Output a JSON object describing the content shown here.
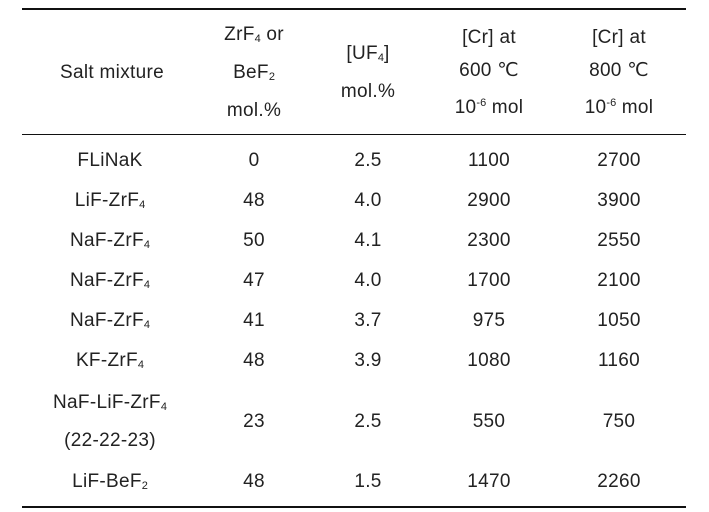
{
  "table": {
    "headers": [
      {
        "lines": [
          [
            {
              "t": "Salt mixture"
            }
          ]
        ]
      },
      {
        "lines": [
          [
            {
              "t": "ZrF"
            },
            {
              "t": "4",
              "s": "sub"
            },
            {
              "t": " or"
            }
          ],
          [
            {
              "t": "BeF"
            },
            {
              "t": "2",
              "s": "sub"
            }
          ],
          [
            {
              "t": "mol.%"
            }
          ]
        ]
      },
      {
        "lines": [
          [
            {
              "t": "[UF"
            },
            {
              "t": "4",
              "s": "sub"
            },
            {
              "t": "]"
            }
          ],
          [
            {
              "t": "mol.%"
            }
          ]
        ]
      },
      {
        "lines": [
          [
            {
              "t": "[Cr] at"
            }
          ],
          [
            {
              "t": "600 ℃"
            }
          ],
          [
            {
              "t": "10"
            },
            {
              "t": "-6",
              "s": "sup"
            },
            {
              "t": " mol"
            }
          ]
        ]
      },
      {
        "lines": [
          [
            {
              "t": "[Cr] at"
            }
          ],
          [
            {
              "t": "800 ℃"
            }
          ],
          [
            {
              "t": "10"
            },
            {
              "t": "-6",
              "s": "sup"
            },
            {
              "t": " mol"
            }
          ]
        ]
      }
    ],
    "rows": [
      {
        "salt": [
          [
            {
              "t": "FLiNaK"
            }
          ]
        ],
        "zrf4_or_bef2": "0",
        "uf4": "2.5",
        "cr_600": "1100",
        "cr_800": "2700"
      },
      {
        "salt": [
          [
            {
              "t": "LiF-ZrF"
            },
            {
              "t": "4",
              "s": "sub"
            }
          ]
        ],
        "zrf4_or_bef2": "48",
        "uf4": "4.0",
        "cr_600": "2900",
        "cr_800": "3900"
      },
      {
        "salt": [
          [
            {
              "t": "NaF-ZrF"
            },
            {
              "t": "4",
              "s": "sub"
            }
          ]
        ],
        "zrf4_or_bef2": "50",
        "uf4": "4.1",
        "cr_600": "2300",
        "cr_800": "2550"
      },
      {
        "salt": [
          [
            {
              "t": "NaF-ZrF"
            },
            {
              "t": "4",
              "s": "sub"
            }
          ]
        ],
        "zrf4_or_bef2": "47",
        "uf4": "4.0",
        "cr_600": "1700",
        "cr_800": "2100"
      },
      {
        "salt": [
          [
            {
              "t": "NaF-ZrF"
            },
            {
              "t": "4",
              "s": "sub"
            }
          ]
        ],
        "zrf4_or_bef2": "41",
        "uf4": "3.7",
        "cr_600": "975",
        "cr_800": "1050"
      },
      {
        "salt": [
          [
            {
              "t": "KF-ZrF"
            },
            {
              "t": "4",
              "s": "sub"
            }
          ]
        ],
        "zrf4_or_bef2": "48",
        "uf4": "3.9",
        "cr_600": "1080",
        "cr_800": "1160"
      },
      {
        "salt": [
          [
            {
              "t": "NaF-LiF-ZrF"
            },
            {
              "t": "4",
              "s": "sub"
            }
          ],
          [
            {
              "t": "(22-22-23)"
            }
          ]
        ],
        "zrf4_or_bef2": "23",
        "uf4": "2.5",
        "cr_600": "550",
        "cr_800": "750"
      },
      {
        "salt": [
          [
            {
              "t": "LiF-BeF"
            },
            {
              "t": "2",
              "s": "sub"
            }
          ]
        ],
        "zrf4_or_bef2": "48",
        "uf4": "1.5",
        "cr_600": "1470",
        "cr_800": "2260"
      }
    ]
  }
}
